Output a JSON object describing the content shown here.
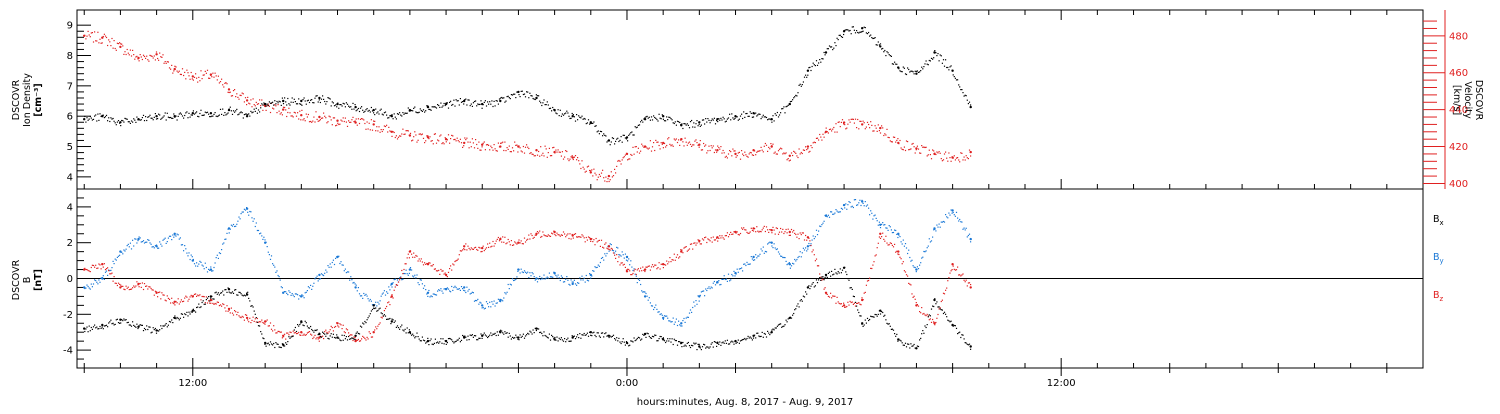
{
  "chart_data": [
    {
      "type": "scatter",
      "panel": "plasma",
      "ylabel_lines": [
        "DSCOVR",
        "Ion Density",
        "[cm⁻³]"
      ],
      "ylim": [
        3.6,
        9.5
      ],
      "yticks": [
        4,
        5,
        6,
        7,
        8,
        9
      ],
      "y2label_lines": [
        "DSCOVR",
        "Velocity",
        "[km/s]"
      ],
      "y2lim": [
        397,
        494
      ],
      "y2ticks": [
        400,
        420,
        440,
        460,
        480
      ],
      "series": [
        {
          "axis": "left",
          "color": "#000000",
          "x": [
            -15.0,
            -14.5,
            -14.0,
            -13.5,
            -13.0,
            -12.5,
            -12.0,
            -11.5,
            -11.0,
            -10.5,
            -10.0,
            -9.5,
            -9.0,
            -8.5,
            -8.0,
            -7.5,
            -7.0,
            -6.5,
            -6.0,
            -5.5,
            -5.0,
            -4.5,
            -4.0,
            -3.5,
            -3.0,
            -2.5,
            -2.0,
            -1.5,
            -1.0,
            -0.5,
            0.0,
            0.5,
            1.0,
            1.5,
            2.0,
            2.5,
            3.0,
            3.5,
            4.0,
            4.5,
            5.0,
            5.5,
            6.0,
            6.5,
            7.0,
            7.5,
            8.0,
            8.5,
            9.0,
            9.5
          ],
          "y": [
            5.9,
            6.0,
            5.8,
            5.9,
            6.0,
            6.0,
            6.1,
            6.1,
            6.2,
            6.0,
            6.4,
            6.5,
            6.5,
            6.6,
            6.4,
            6.3,
            6.2,
            6.0,
            6.2,
            6.3,
            6.4,
            6.5,
            6.4,
            6.5,
            6.8,
            6.6,
            6.2,
            6.0,
            5.8,
            5.2,
            5.3,
            5.9,
            6.0,
            5.7,
            5.8,
            5.9,
            6.0,
            6.1,
            5.9,
            6.4,
            7.5,
            8.1,
            8.8,
            8.9,
            8.3,
            7.6,
            7.4,
            8.1,
            7.5,
            6.3
          ]
        },
        {
          "axis": "right",
          "color": "#e02020",
          "x": [
            -15.0,
            -14.5,
            -14.0,
            -13.5,
            -13.0,
            -12.5,
            -12.0,
            -11.5,
            -11.0,
            -10.5,
            -10.0,
            -9.5,
            -9.0,
            -8.5,
            -8.0,
            -7.5,
            -7.0,
            -6.5,
            -6.0,
            -5.5,
            -5.0,
            -4.5,
            -4.0,
            -3.5,
            -3.0,
            -2.5,
            -2.0,
            -1.5,
            -1.0,
            -0.5,
            0.0,
            0.5,
            1.0,
            1.5,
            2.0,
            2.5,
            3.0,
            3.5,
            4.0,
            4.5,
            5.0,
            5.5,
            6.0,
            6.5,
            7.0,
            7.5,
            8.0,
            8.5,
            9.0,
            9.5
          ],
          "y": [
            480,
            479,
            474,
            468,
            470,
            462,
            458,
            459,
            451,
            445,
            442,
            440,
            437,
            436,
            434,
            433,
            432,
            428,
            426,
            425,
            424,
            422,
            421,
            420,
            420,
            418,
            417,
            414,
            406,
            404,
            416,
            420,
            422,
            424,
            421,
            418,
            416,
            418,
            420,
            415,
            420,
            428,
            433,
            432,
            430,
            422,
            419,
            416,
            414,
            417
          ]
        }
      ]
    },
    {
      "type": "scatter",
      "panel": "magnetic-field",
      "ylabel_lines": [
        "DSCOVR",
        "B",
        "[nT]"
      ],
      "ylim": [
        -5.0,
        5.0
      ],
      "yticks": [
        -4,
        -2,
        0,
        2,
        4
      ],
      "legend_position": "right",
      "series": [
        {
          "name": "Bx",
          "label_main": "B",
          "label_sub": "x",
          "color": "#000000",
          "x": [
            -15.0,
            -14.5,
            -14.0,
            -13.5,
            -13.0,
            -12.5,
            -12.0,
            -11.5,
            -11.0,
            -10.5,
            -10.0,
            -9.5,
            -9.0,
            -8.5,
            -8.0,
            -7.5,
            -7.0,
            -6.5,
            -6.0,
            -5.5,
            -5.0,
            -4.5,
            -4.0,
            -3.5,
            -3.0,
            -2.5,
            -2.0,
            -1.5,
            -1.0,
            -0.5,
            0.0,
            0.5,
            1.0,
            1.5,
            2.0,
            2.5,
            3.0,
            3.5,
            4.0,
            4.5,
            5.0,
            5.5,
            6.0,
            6.5,
            7.0,
            7.5,
            8.0,
            8.5,
            9.0,
            9.5
          ],
          "y": [
            -2.8,
            -2.6,
            -2.3,
            -2.7,
            -2.9,
            -2.2,
            -1.8,
            -1.0,
            -0.6,
            -0.9,
            -3.6,
            -3.7,
            -2.4,
            -3.1,
            -3.3,
            -3.2,
            -1.5,
            -2.4,
            -3.0,
            -3.5,
            -3.5,
            -3.3,
            -3.2,
            -3.0,
            -3.3,
            -2.8,
            -3.4,
            -3.3,
            -3.0,
            -3.2,
            -3.6,
            -3.1,
            -3.4,
            -3.6,
            -3.8,
            -3.6,
            -3.5,
            -3.2,
            -3.0,
            -2.2,
            -0.5,
            0.2,
            0.6,
            -2.5,
            -1.8,
            -3.4,
            -3.9,
            -1.2,
            -2.6,
            -3.8
          ]
        },
        {
          "name": "By",
          "label_main": "B",
          "label_sub": "y",
          "color": "#1a78d6",
          "x": [
            -15.0,
            -14.5,
            -14.0,
            -13.5,
            -13.0,
            -12.5,
            -12.0,
            -11.5,
            -11.0,
            -10.5,
            -10.0,
            -9.5,
            -9.0,
            -8.5,
            -8.0,
            -7.5,
            -7.0,
            -6.5,
            -6.0,
            -5.5,
            -5.0,
            -4.5,
            -4.0,
            -3.5,
            -3.0,
            -2.5,
            -2.0,
            -1.5,
            -1.0,
            -0.5,
            0.0,
            0.5,
            1.0,
            1.5,
            2.0,
            2.5,
            3.0,
            3.5,
            4.0,
            4.5,
            5.0,
            5.5,
            6.0,
            6.5,
            7.0,
            7.5,
            8.0,
            8.5,
            9.0,
            9.5
          ],
          "y": [
            -0.5,
            0.0,
            1.5,
            2.2,
            1.8,
            2.5,
            1.0,
            0.5,
            2.8,
            3.9,
            2.0,
            -0.8,
            -1.0,
            0.2,
            1.2,
            -0.5,
            -1.5,
            -0.3,
            0.5,
            -0.8,
            -0.6,
            -0.5,
            -1.5,
            -1.2,
            0.5,
            0.0,
            0.3,
            -0.3,
            0.2,
            1.8,
            1.2,
            -1.0,
            -2.2,
            -2.5,
            -1.0,
            -0.2,
            0.3,
            1.2,
            2.0,
            0.8,
            1.8,
            3.5,
            4.1,
            4.3,
            3.0,
            2.5,
            0.5,
            2.8,
            3.8,
            2.2
          ]
        },
        {
          "name": "Bz",
          "label_main": "B",
          "label_sub": "z",
          "color": "#e02020",
          "x": [
            -15.0,
            -14.5,
            -14.0,
            -13.5,
            -13.0,
            -12.5,
            -12.0,
            -11.5,
            -11.0,
            -10.5,
            -10.0,
            -9.5,
            -9.0,
            -8.5,
            -8.0,
            -7.5,
            -7.0,
            -6.5,
            -6.0,
            -5.5,
            -5.0,
            -4.5,
            -4.0,
            -3.5,
            -3.0,
            -2.5,
            -2.0,
            -1.5,
            -1.0,
            -0.5,
            0.0,
            0.5,
            1.0,
            1.5,
            2.0,
            2.5,
            3.0,
            3.5,
            4.0,
            4.5,
            5.0,
            5.5,
            6.0,
            6.5,
            7.0,
            7.5,
            8.0,
            8.5,
            9.0,
            9.5
          ],
          "y": [
            0.5,
            0.8,
            -0.5,
            -0.3,
            -0.8,
            -1.3,
            -1.0,
            -1.2,
            -1.7,
            -2.2,
            -2.4,
            -3.2,
            -3.0,
            -3.3,
            -2.5,
            -3.5,
            -3.0,
            -1.0,
            1.5,
            0.8,
            0.2,
            1.8,
            1.7,
            2.2,
            2.0,
            2.5,
            2.6,
            2.4,
            2.2,
            1.8,
            0.4,
            0.5,
            0.8,
            1.5,
            2.1,
            2.3,
            2.6,
            2.8,
            2.7,
            2.6,
            2.3,
            -0.8,
            -1.5,
            -1.2,
            2.5,
            1.5,
            -1.5,
            -2.5,
            0.8,
            -0.5
          ]
        }
      ]
    }
  ],
  "xaxis": {
    "range_hours": [
      -15.2,
      22.0
    ],
    "major_ticks": [
      -12,
      0,
      12
    ],
    "major_tick_labels": [
      "12:00",
      "0:00",
      "12:00"
    ],
    "minor_tick_step_hours": 1,
    "title": "hours:minutes, Aug.  8, 2017 - Aug.  9, 2017"
  }
}
